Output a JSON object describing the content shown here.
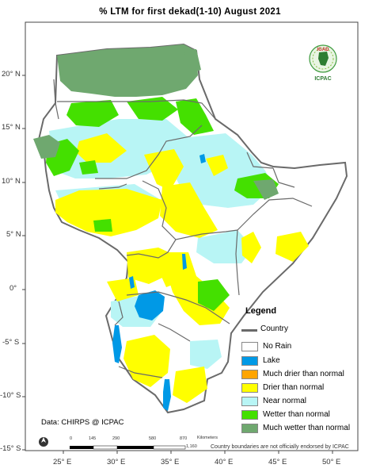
{
  "title": "% LTM  for  first  dekad(1-10)  August 2021",
  "axes": {
    "lat_labels": [
      "20° N",
      "15° N",
      "10° N",
      "5° N",
      "0°",
      "-5° S",
      "-10° S",
      "-15° S"
    ],
    "lon_labels": [
      "25° E",
      "30° E",
      "35° E",
      "40° E",
      "45° E",
      "50° E"
    ]
  },
  "legend": {
    "title": "Legend",
    "country_label": "Country",
    "items": [
      {
        "label": "No Rain",
        "color": "#ffffff"
      },
      {
        "label": "Lake",
        "color": "#0099e6"
      },
      {
        "label": "Much drier than normal",
        "color": "#ffa500"
      },
      {
        "label": "Drier than normal",
        "color": "#ffff00"
      },
      {
        "label": "Near normal",
        "color": "#b8f5f5"
      },
      {
        "label": "Wetter than normal",
        "color": "#44e000"
      },
      {
        "label": "Much wetter than normal",
        "color": "#6fa86f"
      }
    ]
  },
  "credit": "Data: CHIRPS @ ICPAC",
  "disclaimer": "Country boundaries are not officially endorsed by ICPAC",
  "scale_bar": {
    "ticks": [
      "0",
      "145",
      "290",
      "580",
      "870",
      "1,160"
    ],
    "unit": "Kilometers"
  },
  "logo": {
    "top_text": "IGAD",
    "bottom_text": "ICPAC"
  },
  "colors": {
    "no_rain": "#ffffff",
    "lake": "#0099e6",
    "drier": "#ffff00",
    "near_normal": "#b8f5f5",
    "wetter": "#44e000",
    "much_wetter": "#6fa86f",
    "country_border": "#6a6a6a"
  }
}
